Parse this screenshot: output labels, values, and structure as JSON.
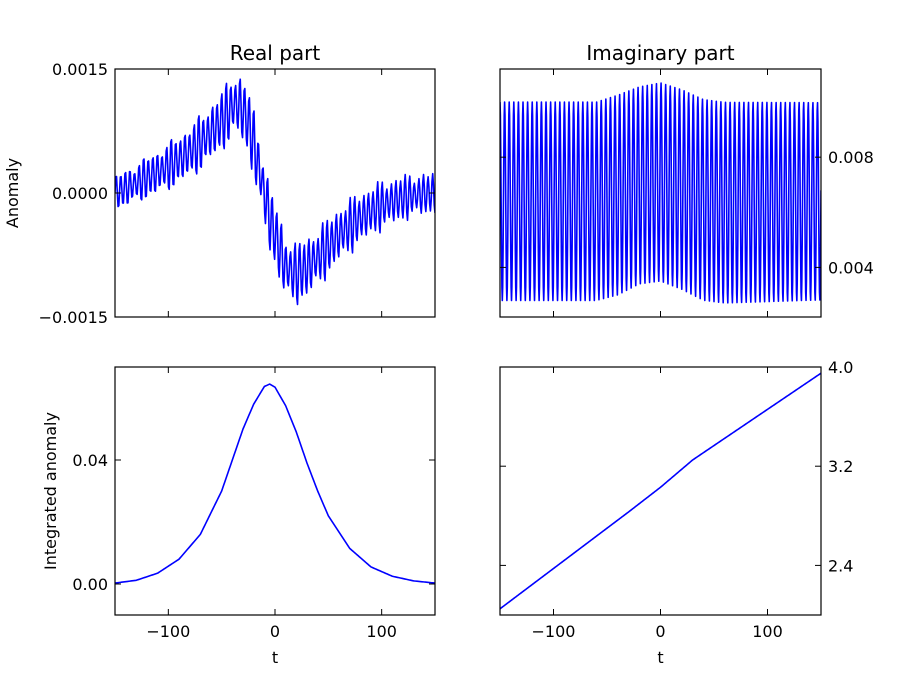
{
  "chart_data": [
    {
      "id": "real-anomaly",
      "type": "line",
      "title": "Real part",
      "xlabel": "",
      "ylabel": "Anomaly",
      "xlim": [
        -150,
        150
      ],
      "ylim": [
        -0.0015,
        0.0015
      ],
      "xticks": [
        -100,
        0,
        100
      ],
      "xtick_labels": [],
      "yticks": [
        -0.0015,
        0.0,
        0.0015
      ],
      "ytick_labels": [
        "−0.0015",
        "0.0000",
        "0.0015"
      ],
      "ytick_side": "left",
      "grid": false,
      "series": [
        {
          "color": "#0000ff",
          "x": [
            -150,
            -130,
            -110,
            -90,
            -70,
            -55,
            -45,
            -40,
            -35,
            -30,
            -25,
            -20,
            -15,
            -10,
            -5,
            0,
            5,
            10,
            20,
            30,
            40,
            50,
            60,
            70,
            80,
            90,
            100,
            110,
            120,
            130,
            140,
            150
          ],
          "y": [
            0.0,
            0.00012,
            0.00025,
            0.0004,
            0.0006,
            0.0008,
            0.00095,
            0.00105,
            0.00108,
            0.001,
            0.00085,
            0.0006,
            0.0003,
            0.0,
            -0.0003,
            -0.0005,
            -0.0007,
            -0.0009,
            -0.00098,
            -0.0009,
            -0.00078,
            -0.00065,
            -0.0005,
            -0.0004,
            -0.0003,
            -0.00022,
            -0.00015,
            -0.0001,
            -6e-05,
            -3e-05,
            -1e-05,
            0.0
          ],
          "oscillation_period": 4.3,
          "oscillation_amplitude": [
            0.00018,
            0.00035,
            0.0002
          ]
        }
      ]
    },
    {
      "id": "imaginary-anomaly",
      "type": "line",
      "title": "Imaginary part",
      "xlabel": "",
      "ylabel": "",
      "xlim": [
        -150,
        150
      ],
      "ylim": [
        0.0022,
        0.0112
      ],
      "xticks": [
        -100,
        0,
        100
      ],
      "xtick_labels": [],
      "yticks": [
        0.004,
        0.008
      ],
      "ytick_labels": [
        "0.004",
        "0.008"
      ],
      "ytick_side": "right",
      "grid": false,
      "series": [
        {
          "color": "#0000ff",
          "x": [
            -150,
            150
          ],
          "y": [
            0.0028,
            0.01
          ],
          "oscillation_period": 4.3,
          "envelope": {
            "top": {
              "x": [
                -150,
                -60,
                -40,
                -20,
                0,
                20,
                40,
                60,
                150
              ],
              "y": [
                0.01,
                0.01,
                0.01025,
                0.01055,
                0.0107,
                0.01045,
                0.0101,
                0.01,
                0.01
              ]
            },
            "bottom": {
              "x": [
                -150,
                -60,
                -40,
                -20,
                0,
                20,
                40,
                60,
                150
              ],
              "y": [
                0.0028,
                0.0028,
                0.003,
                0.0034,
                0.0035,
                0.0032,
                0.0028,
                0.0027,
                0.0028
              ]
            }
          }
        }
      ]
    },
    {
      "id": "real-integrated",
      "type": "line",
      "title": "",
      "xlabel": "t",
      "ylabel": "Integrated anomaly",
      "xlim": [
        -150,
        150
      ],
      "ylim": [
        -0.01,
        0.07
      ],
      "xticks": [
        -100,
        0,
        100
      ],
      "xtick_labels": [
        "−100",
        "0",
        "100"
      ],
      "yticks": [
        0.0,
        0.04
      ],
      "ytick_labels": [
        "0.00",
        "0.04"
      ],
      "ytick_side": "left",
      "grid": false,
      "series": [
        {
          "color": "#0000ff",
          "x": [
            -150,
            -130,
            -110,
            -90,
            -70,
            -50,
            -40,
            -30,
            -20,
            -10,
            -5,
            0,
            10,
            20,
            30,
            40,
            50,
            70,
            90,
            110,
            130,
            150
          ],
          "y": [
            0.0003,
            0.0012,
            0.0035,
            0.008,
            0.016,
            0.03,
            0.04,
            0.05,
            0.058,
            0.0637,
            0.0645,
            0.0635,
            0.0575,
            0.049,
            0.039,
            0.03,
            0.022,
            0.0115,
            0.0055,
            0.0025,
            0.001,
            0.0003
          ]
        }
      ]
    },
    {
      "id": "imaginary-integrated",
      "type": "line",
      "title": "",
      "xlabel": "t",
      "ylabel": "",
      "xlim": [
        -150,
        150
      ],
      "ylim": [
        2.0,
        4.0
      ],
      "xticks": [
        -100,
        0,
        100
      ],
      "xtick_labels": [
        "−100",
        "0",
        "100"
      ],
      "yticks": [
        2.4,
        3.2,
        4.0
      ],
      "ytick_labels": [
        "2.4",
        "3.2",
        "4.0"
      ],
      "ytick_side": "right",
      "grid": false,
      "series": [
        {
          "color": "#0000ff",
          "x": [
            -150,
            -30,
            0,
            30,
            150
          ],
          "y": [
            2.05,
            2.83,
            3.03,
            3.25,
            3.95
          ]
        }
      ]
    }
  ]
}
